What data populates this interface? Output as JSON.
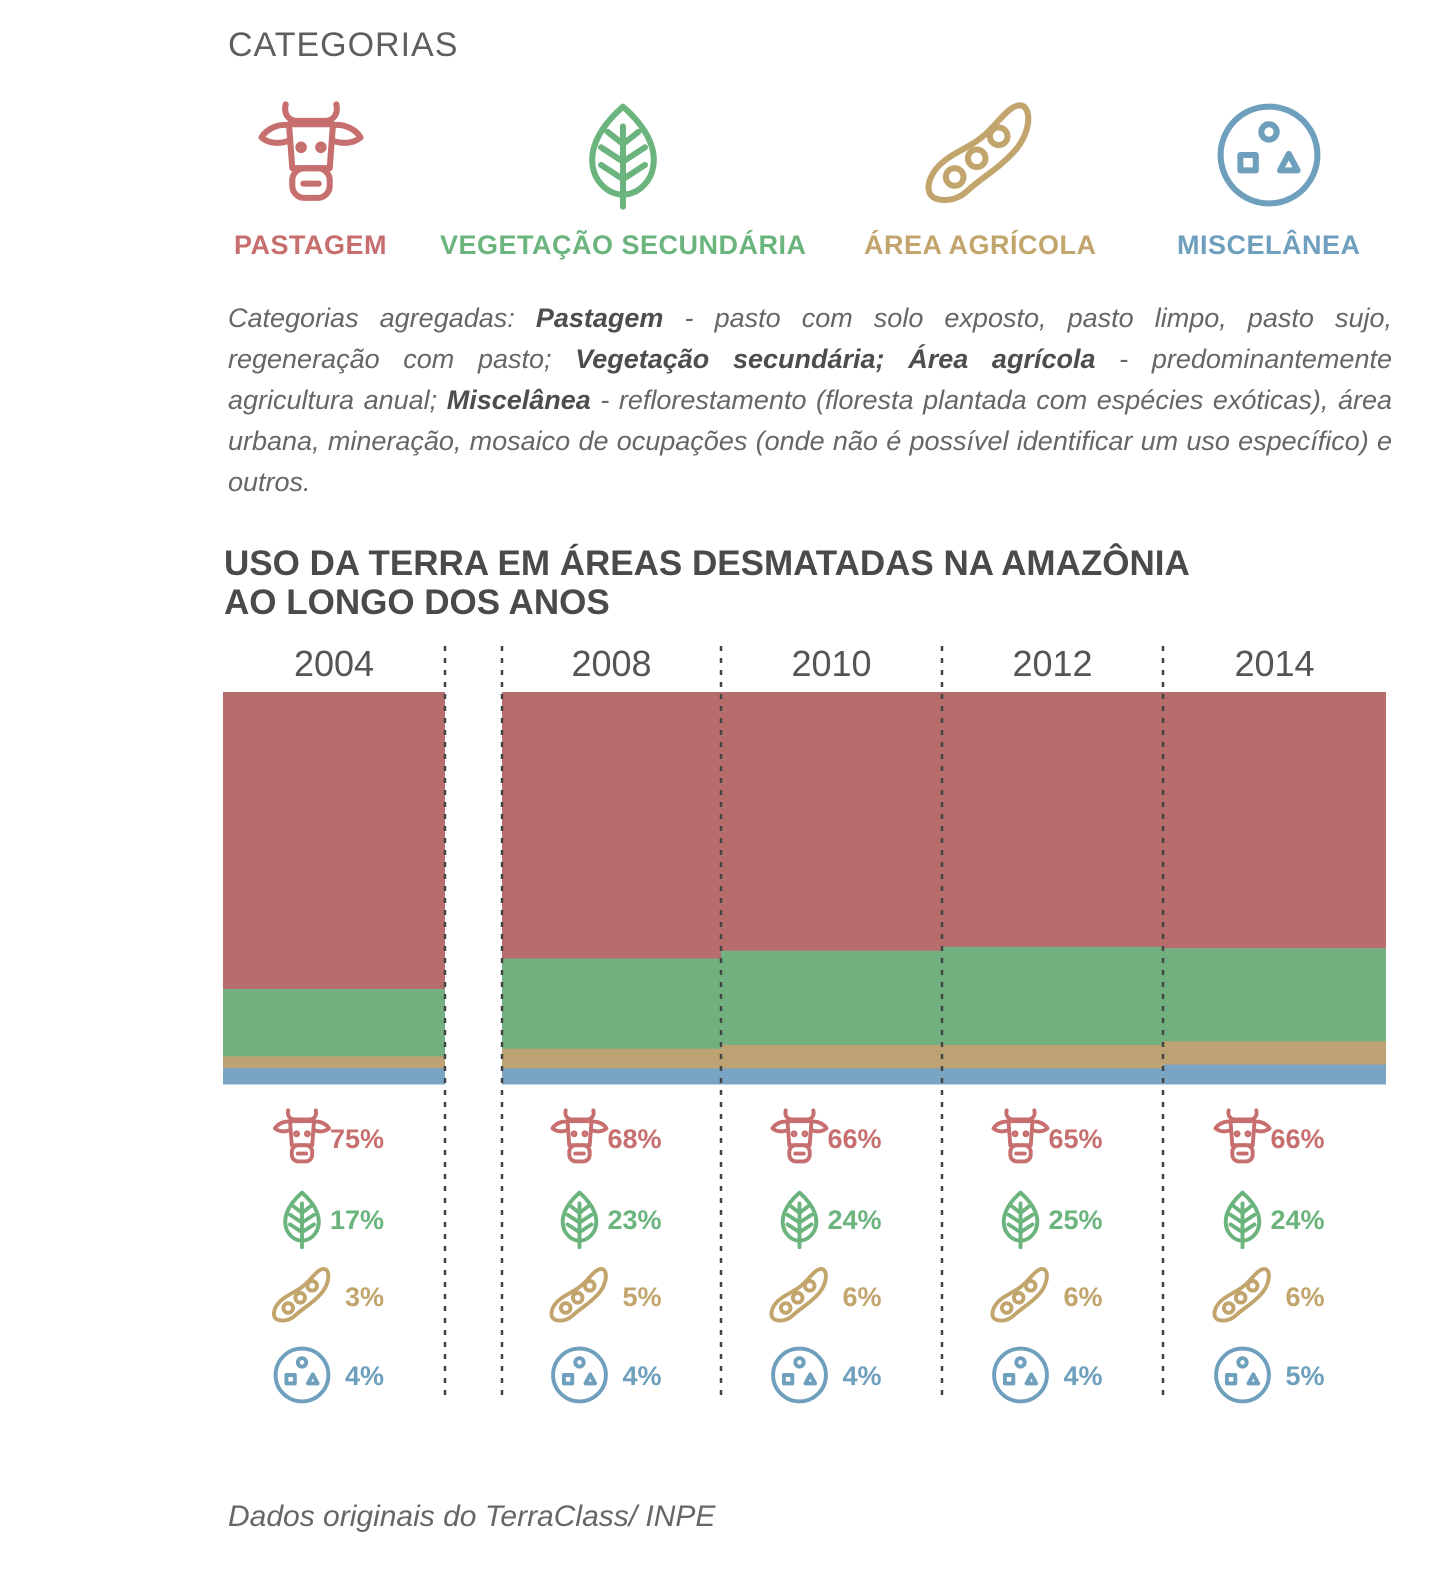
{
  "categories_heading": "CATEGORIAS",
  "categories": [
    {
      "key": "pastagem",
      "label": "PASTAGEM",
      "icon": "cow-icon",
      "color": "#c76f6f"
    },
    {
      "key": "vegetacao",
      "label": "VEGETAÇÃO SECUNDÁRIA",
      "icon": "leaf-icon",
      "color": "#6cb47e"
    },
    {
      "key": "agricola",
      "label": "ÁREA AGRÍCOLA",
      "icon": "soybean-pod-icon",
      "color": "#c2a56c"
    },
    {
      "key": "miscelanea",
      "label": "MISCELÂNEA",
      "icon": "circle-shapes-icon",
      "color": "#6e9fbd"
    }
  ],
  "description": {
    "p1": "Categorias agregadas: ",
    "b1": "Pastagem",
    "p2": " - pasto com solo exposto, pasto limpo, pasto sujo, regeneração com pasto; ",
    "b2": "Vegetação secundária; Área agrícola",
    "p3": " - predominantemente agricultura anual; ",
    "b3": "Miscelânea",
    "p4": " - reflorestamento (floresta plantada com espécies exóticas), área urbana, mineração, mosaico de ocupações (onde não é possível identificar um uso específico) e outros."
  },
  "source": "Dados originais do TerraClass/ INPE",
  "chart_data": {
    "type": "bar",
    "stacked": true,
    "normalized": true,
    "title": [
      "USO DA TERRA EM ÁREAS DESMATADAS NA AMAZÔNIA",
      "AO LONGO DOS ANOS"
    ],
    "categories": [
      "2004",
      "2008",
      "2010",
      "2012",
      "2014"
    ],
    "series": [
      {
        "name": "PASTAGEM",
        "icon": "cow-icon",
        "color": "#b86d6d",
        "label_color": "#c76f6f",
        "values": [
          75,
          68,
          66,
          65,
          66
        ]
      },
      {
        "name": "VEGETAÇÃO SECUNDÁRIA",
        "icon": "leaf-icon",
        "color": "#72b07f",
        "label_color": "#6cb47e",
        "values": [
          17,
          23,
          24,
          25,
          24
        ]
      },
      {
        "name": "ÁREA AGRÍCOLA",
        "icon": "soybean-pod-icon",
        "color": "#bda374",
        "label_color": "#c2a56c",
        "values": [
          3,
          5,
          6,
          6,
          6
        ]
      },
      {
        "name": "MISCELÂNEA",
        "icon": "circle-shapes-icon",
        "color": "#79a4c3",
        "label_color": "#6e9fbd",
        "values": [
          4,
          4,
          4,
          4,
          5
        ]
      }
    ],
    "value_suffix": "%",
    "grid": false,
    "legend": "below each bar"
  }
}
